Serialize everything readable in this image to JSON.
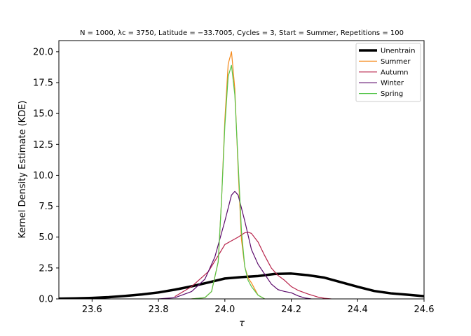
{
  "chart_data": {
    "type": "line",
    "title": "N = 1000, λc = 3750, Latitude = −33.7005, Cycles = 3, Start = Summer, Repetitions = 100",
    "xlabel": "τ",
    "ylabel": "Kernel Density Estimate (KDE)",
    "xlim": [
      23.5,
      24.6
    ],
    "ylim": [
      0,
      20.9
    ],
    "xticks": [
      "23.6",
      "23.8",
      "24.0",
      "24.2",
      "24.4",
      "24.6"
    ],
    "yticks": [
      "0.0",
      "2.5",
      "5.0",
      "7.5",
      "10.0",
      "12.5",
      "15.0",
      "17.5",
      "20.0"
    ],
    "grid": false,
    "legend_position": "top-right",
    "series": [
      {
        "name": "Unentrain",
        "color": "#000000",
        "x": [
          23.5,
          23.55,
          23.6,
          23.65,
          23.7,
          23.75,
          23.8,
          23.85,
          23.9,
          23.95,
          24.0,
          24.05,
          24.1,
          24.15,
          24.2,
          24.25,
          24.3,
          24.35,
          24.4,
          24.45,
          24.5,
          24.55,
          24.6
        ],
        "values": [
          0.02,
          0.04,
          0.08,
          0.14,
          0.24,
          0.36,
          0.52,
          0.75,
          1.02,
          1.33,
          1.65,
          1.76,
          1.85,
          2.02,
          2.05,
          1.92,
          1.72,
          1.35,
          0.98,
          0.64,
          0.45,
          0.34,
          0.22
        ]
      },
      {
        "name": "Summer",
        "color": "#f5891a",
        "x": [
          23.9,
          23.94,
          23.96,
          23.98,
          23.99,
          24.0,
          24.01,
          24.02,
          24.03,
          24.04,
          24.05,
          24.06,
          24.07,
          24.08,
          24.1,
          24.12
        ],
        "values": [
          0,
          0.1,
          0.6,
          3.0,
          8.0,
          14.5,
          19.0,
          20.0,
          17.0,
          10.5,
          4.8,
          2.6,
          1.7,
          1.3,
          0.3,
          0
        ]
      },
      {
        "name": "Autumn",
        "color": "#b8234a",
        "x": [
          23.85,
          23.9,
          23.95,
          23.98,
          24.0,
          24.02,
          24.04,
          24.06,
          24.07,
          24.08,
          24.1,
          24.12,
          24.14,
          24.16,
          24.18,
          24.2,
          24.22,
          24.25,
          24.28,
          24.3,
          24.32
        ],
        "values": [
          0.2,
          1.0,
          2.2,
          3.5,
          4.4,
          4.7,
          5.0,
          5.35,
          5.4,
          5.3,
          4.6,
          3.5,
          2.5,
          1.9,
          1.5,
          1.0,
          0.7,
          0.4,
          0.15,
          0.05,
          0
        ]
      },
      {
        "name": "Winter",
        "color": "#5b0a6b",
        "x": [
          23.8,
          23.85,
          23.9,
          23.94,
          23.97,
          24.0,
          24.02,
          24.03,
          24.04,
          24.06,
          24.08,
          24.1,
          24.12,
          24.14,
          24.16,
          24.18,
          24.2,
          24.22,
          24.24,
          24.26
        ],
        "values": [
          0,
          0.1,
          0.6,
          1.6,
          3.4,
          6.3,
          8.4,
          8.7,
          8.4,
          6.3,
          4.0,
          2.8,
          2.0,
          1.2,
          0.75,
          0.6,
          0.5,
          0.25,
          0.08,
          0
        ]
      },
      {
        "name": "Spring",
        "color": "#55c54a",
        "x": [
          23.9,
          23.94,
          23.96,
          23.98,
          23.99,
          24.0,
          24.01,
          24.02,
          24.03,
          24.04,
          24.05,
          24.06,
          24.07,
          24.08,
          24.1,
          24.12
        ],
        "values": [
          0,
          0.1,
          0.6,
          3.0,
          8.0,
          14.0,
          18.0,
          18.9,
          16.5,
          11.0,
          5.5,
          2.6,
          1.5,
          1.0,
          0.3,
          0
        ]
      }
    ]
  }
}
